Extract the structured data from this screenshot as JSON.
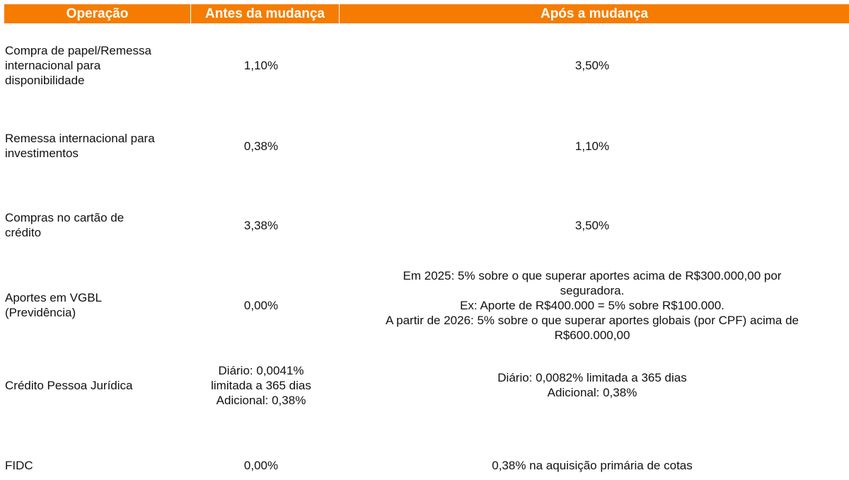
{
  "header": {
    "col1": "Operação",
    "col2": "Antes da mudança",
    "col3": "Após a mudança"
  },
  "colors": {
    "header_bg": "#f57c00",
    "header_text": "#ffffff"
  },
  "rows": [
    {
      "operacao": "Compra de papel/Remessa\ninternacional para\ndisponibilidade",
      "antes": "1,10%",
      "apos": "3,50%"
    },
    {
      "operacao": "Remessa internacional para\ninvestimentos",
      "antes": "0,38%",
      "apos": "1,10%"
    },
    {
      "operacao": "Compras no cartão de\ncrédito",
      "antes": "3,38%",
      "apos": "3,50%"
    },
    {
      "operacao": "Aportes em VGBL\n(Previdência)",
      "antes": "0,00%",
      "apos": "Em 2025: 5% sobre o que superar aportes acima de R$300.000,00 por\nseguradora.\nEx: Aporte de R$400.000 = 5% sobre R$100.000.\nA partir de 2026: 5% sobre o que superar aportes globais (por CPF) acima de\nR$600.000,00"
    },
    {
      "operacao": "Crédito Pessoa Jurídica",
      "antes": "Diário: 0,0041%\nlimitada a 365 dias\nAdicional: 0,38%",
      "apos": "Diário: 0,0082% limitada a 365 dias\nAdicional: 0,38%"
    },
    {
      "operacao": "FIDC",
      "antes": "0,00%",
      "apos": "0,38% na aquisição primária de cotas"
    }
  ]
}
